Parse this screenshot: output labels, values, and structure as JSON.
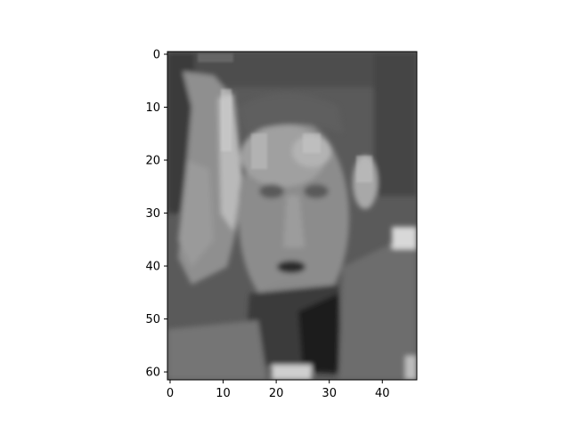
{
  "figure": {
    "background": "#ffffff",
    "colormap": "gray",
    "image_rows": 62,
    "image_cols": 47,
    "subject": "grayscale portrait photo of a man's face with one hand raised beside it"
  },
  "axes": {
    "x_ticks": [
      "0",
      "10",
      "20",
      "30",
      "40"
    ],
    "y_ticks": [
      "0",
      "10",
      "20",
      "30",
      "40",
      "50",
      "60"
    ],
    "xlim": [
      -0.5,
      46.5
    ],
    "ylim": [
      61.5,
      -0.5
    ],
    "x_tick_values": [
      0,
      10,
      20,
      30,
      40
    ],
    "y_tick_values": [
      0,
      10,
      20,
      30,
      40,
      50,
      60
    ],
    "spine_color": "#000000"
  }
}
